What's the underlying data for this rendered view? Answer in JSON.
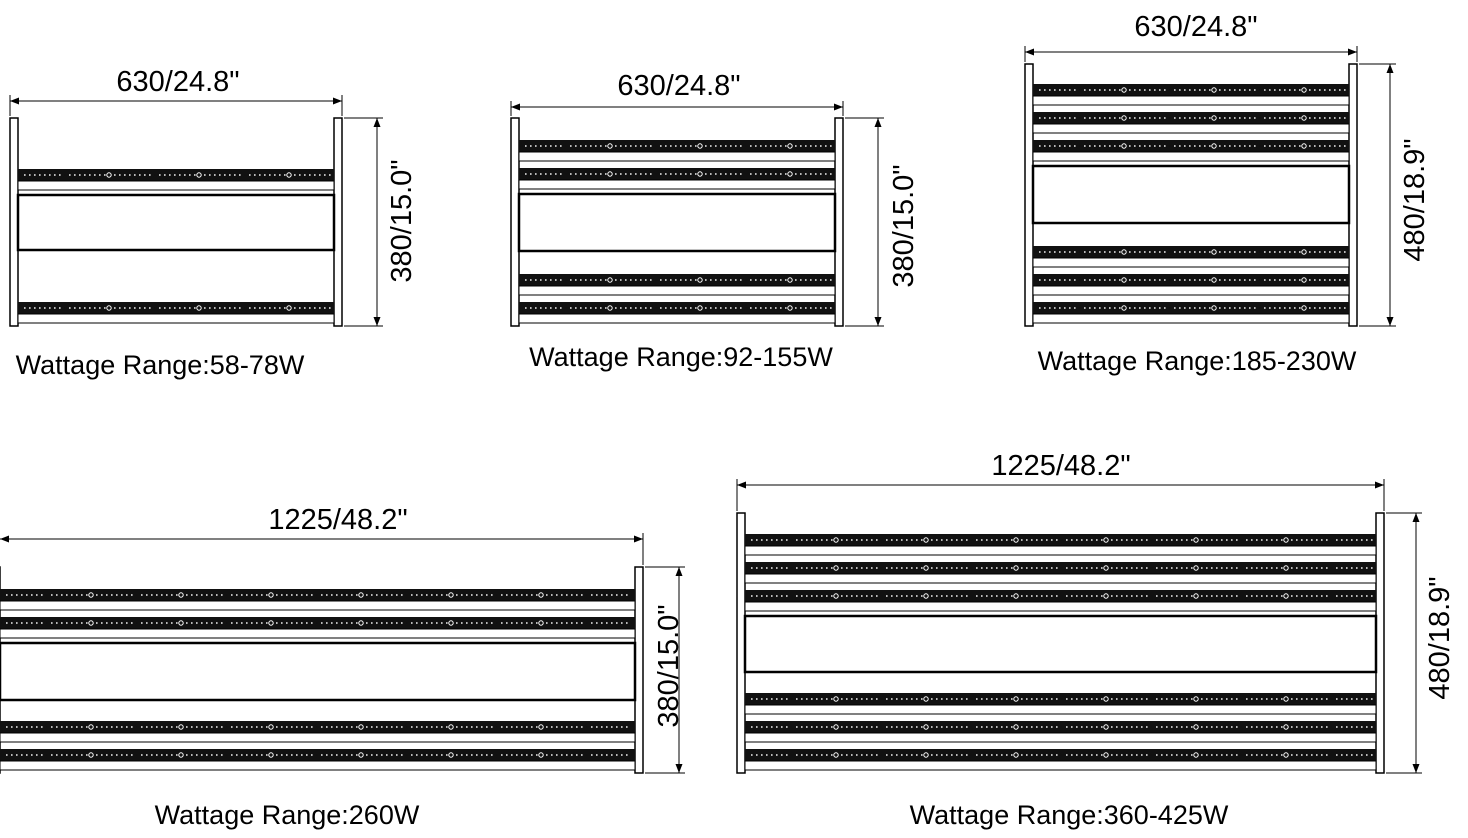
{
  "colors": {
    "line": "#000000",
    "background": "#ffffff",
    "bar_fill": "#111111",
    "dot": "#ffffff"
  },
  "fixtures": [
    {
      "width_label": "630/24.8\"",
      "height_label": "380/15.0\"",
      "wattage_label": "Wattage Range:58-78W",
      "top_bars": 1,
      "bottom_bars": 1
    },
    {
      "width_label": "630/24.8\"",
      "height_label": "380/15.0\"",
      "wattage_label": "Wattage Range:92-155W",
      "top_bars": 2,
      "bottom_bars": 2
    },
    {
      "width_label": "630/24.8\"",
      "height_label": "480/18.9\"",
      "wattage_label": "Wattage Range:185-230W",
      "top_bars": 3,
      "bottom_bars": 3
    },
    {
      "width_label": "1225/48.2\"",
      "height_label": "380/15.0\"",
      "wattage_label": "Wattage Range:260W",
      "top_bars": 2,
      "bottom_bars": 2
    },
    {
      "width_label": "1225/48.2\"",
      "height_label": "480/18.9\"",
      "wattage_label": "Wattage Range:360-425W",
      "top_bars": 3,
      "bottom_bars": 3
    }
  ]
}
